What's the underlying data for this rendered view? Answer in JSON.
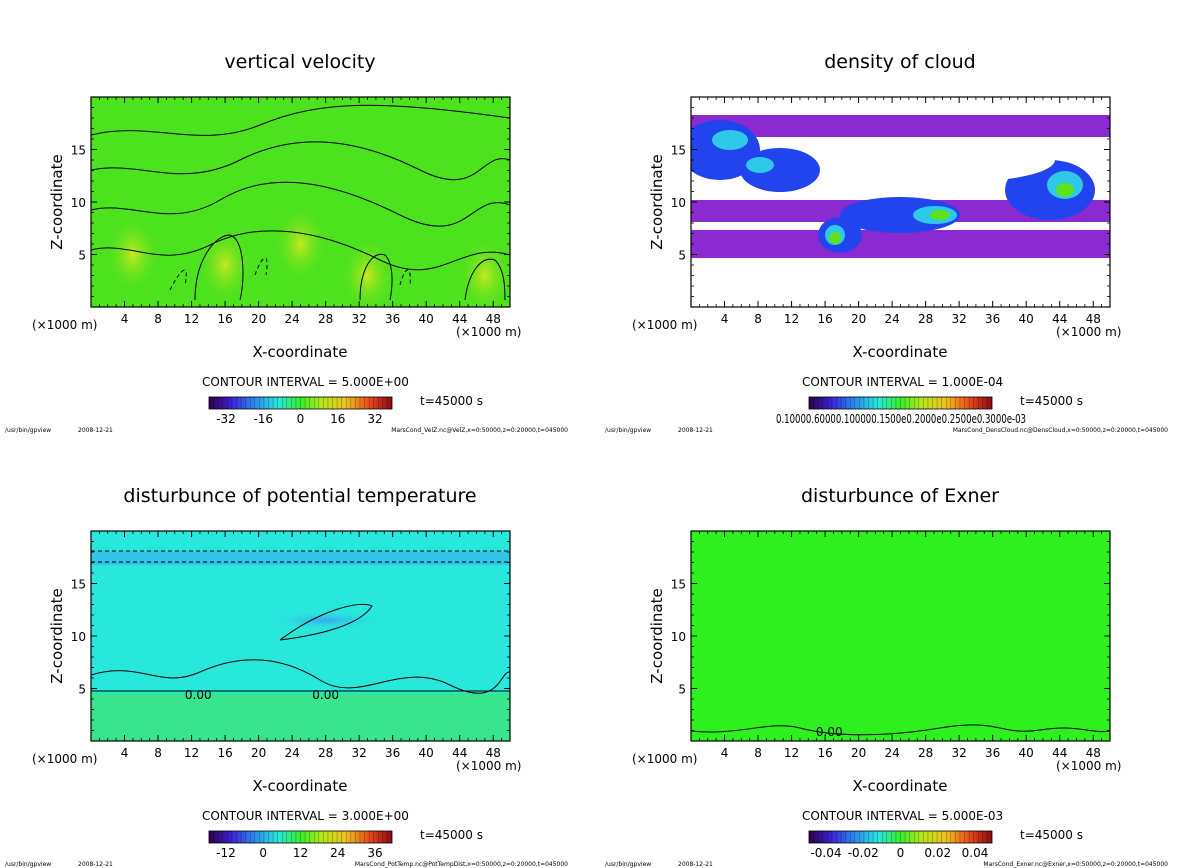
{
  "footer_program": "/usr/bin/gpview",
  "footer_date": "2008-12-21",
  "panels": [
    {
      "id": "velz",
      "title": "vertical velocity",
      "xlabel": "X-coordinate",
      "ylabel": "Z-coordinate",
      "x_unit": "(×1000 m)",
      "x_unit_top": "(×1000 m)",
      "x_ticks": [
        "4",
        "8",
        "12",
        "16",
        "20",
        "24",
        "28",
        "32",
        "36",
        "40",
        "44",
        "48"
      ],
      "y_ticks": [
        "5",
        "10",
        "15"
      ],
      "contour_interval": "CONTOUR INTERVAL = 5.000E+00",
      "time": "t=45000 s",
      "colorbar_ticks": [
        "-32",
        "-16",
        "0",
        "16",
        "32"
      ],
      "colorbar_ticklabel_single": "",
      "contour_label": "",
      "footer_source": "MarsCond_VelZ.nc@VelZ,x=0:50000,z=0:20000,t=045000",
      "fill_color": "#4ce21e"
    },
    {
      "id": "denscloud",
      "title": "density of cloud",
      "xlabel": "X-coordinate",
      "ylabel": "Z-coordinate",
      "x_unit": "(×1000 m)",
      "x_unit_top": "(×1000 m)",
      "x_ticks": [
        "4",
        "8",
        "12",
        "16",
        "20",
        "24",
        "28",
        "32",
        "36",
        "40",
        "44",
        "48"
      ],
      "y_ticks": [
        "5",
        "10",
        "15"
      ],
      "contour_interval": "CONTOUR INTERVAL = 1.000E-04",
      "time": "t=45000 s",
      "colorbar_ticks": [],
      "colorbar_ticklabel_single": "0.10000.60000.100000.1500e0.2000e0.2500e0.3000e-03",
      "contour_label": "",
      "footer_source": "MarsCond_DensCloud.nc@DensCloud,x=0:50000,z=0:20000,t=045000",
      "fill_color": "#2244ee"
    },
    {
      "id": "pottemp",
      "title": "disturbunce of potential temperature",
      "xlabel": "X-coordinate",
      "ylabel": "Z-coordinate",
      "x_unit": "(×1000 m)",
      "x_unit_top": "(×1000 m)",
      "x_ticks": [
        "4",
        "8",
        "12",
        "16",
        "20",
        "24",
        "28",
        "32",
        "36",
        "40",
        "44",
        "48"
      ],
      "y_ticks": [
        "5",
        "10",
        "15"
      ],
      "contour_interval": "CONTOUR INTERVAL = 3.000E+00",
      "time": "t=45000 s",
      "colorbar_ticks": [
        "-12",
        "0",
        "12",
        "24",
        "36"
      ],
      "colorbar_ticklabel_single": "",
      "contour_label": "0.00",
      "footer_source": "MarsCond_PotTemp.nc@PotTempDist,x=0:50000,z=0:20000,t=045000",
      "fill_color": "#28e8dc"
    },
    {
      "id": "exner",
      "title": "disturbunce of Exner",
      "xlabel": "X-coordinate",
      "ylabel": "Z-coordinate",
      "x_unit": "(×1000 m)",
      "x_unit_top": "(×1000 m)",
      "x_ticks": [
        "4",
        "8",
        "12",
        "16",
        "20",
        "24",
        "28",
        "32",
        "36",
        "40",
        "44",
        "48"
      ],
      "y_ticks": [
        "5",
        "10",
        "15"
      ],
      "contour_interval": "CONTOUR INTERVAL = 5.000E-03",
      "time": "t=45000 s",
      "colorbar_ticks": [
        "-0.04",
        "-0.02",
        "0",
        "0.02",
        "0.04"
      ],
      "colorbar_ticklabel_single": "",
      "contour_label": "0.00",
      "footer_source": "MarsCond_Exner.nc@Exner,x=0:50000,z=0:20000,t=045000",
      "fill_color": "#2ef01e"
    }
  ],
  "chart_data": [
    {
      "type": "heatmap",
      "title": "vertical velocity",
      "xlabel": "X-coordinate",
      "ylabel": "Z-coordinate",
      "x_ticks": [
        4,
        8,
        12,
        16,
        20,
        24,
        28,
        32,
        36,
        40,
        44,
        48
      ],
      "y_ticks": [
        5,
        10,
        15
      ],
      "xlim": [
        0,
        50
      ],
      "ylim": [
        0,
        20
      ],
      "colorbar_ticks": [
        -32,
        -16,
        0,
        16,
        32
      ],
      "contour_interval": 5.0
    },
    {
      "type": "heatmap",
      "title": "density of cloud",
      "xlabel": "X-coordinate",
      "ylabel": "Z-coordinate",
      "x_ticks": [
        4,
        8,
        12,
        16,
        20,
        24,
        28,
        32,
        36,
        40,
        44,
        48
      ],
      "y_ticks": [
        5,
        10,
        15
      ],
      "xlim": [
        0,
        50
      ],
      "ylim": [
        0,
        20
      ],
      "contour_interval": 0.0001
    },
    {
      "type": "heatmap",
      "title": "disturbunce of potential temperature",
      "xlabel": "X-coordinate",
      "ylabel": "Z-coordinate",
      "x_ticks": [
        4,
        8,
        12,
        16,
        20,
        24,
        28,
        32,
        36,
        40,
        44,
        48
      ],
      "y_ticks": [
        5,
        10,
        15
      ],
      "xlim": [
        0,
        50
      ],
      "ylim": [
        0,
        20
      ],
      "colorbar_ticks": [
        -12,
        0,
        12,
        24,
        36
      ],
      "contour_interval": 3.0
    },
    {
      "type": "heatmap",
      "title": "disturbunce of Exner",
      "xlabel": "X-coordinate",
      "ylabel": "Z-coordinate",
      "x_ticks": [
        4,
        8,
        12,
        16,
        20,
        24,
        28,
        32,
        36,
        40,
        44,
        48
      ],
      "y_ticks": [
        5,
        10,
        15
      ],
      "xlim": [
        0,
        50
      ],
      "ylim": [
        0,
        20
      ],
      "colorbar_ticks": [
        -0.04,
        -0.02,
        0,
        0.02,
        0.04
      ],
      "contour_interval": 0.005
    }
  ]
}
